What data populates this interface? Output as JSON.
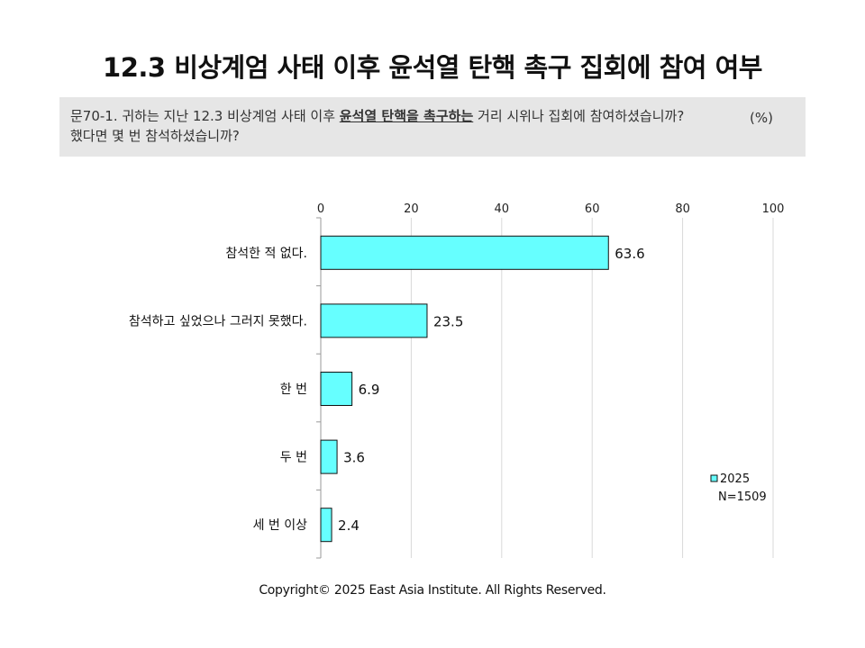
{
  "title": "12.3 비상계엄 사태 이후 윤석열 탄핵 촉구 집회에 참여 여부",
  "question": {
    "prefix": "문70-1. 귀하는 지난 12.3 비상계엄 사태 이후 ",
    "emphasis": "윤석열 탄핵을 촉구하는",
    "suffix": " 거리 시위나 집회에 참여하셨습니까?",
    "line2": "했다면 몇 번 참석하셨습니까?"
  },
  "unit": "(%)",
  "footer": "Copyright© 2025 East Asia Institute. All Rights Reserved.",
  "chart_data": {
    "type": "bar",
    "orientation": "horizontal",
    "categories": [
      "참석한 적 없다.",
      "참석하고 싶었으나 그러지 못했다.",
      "한 번",
      "두 번",
      "세 번 이상"
    ],
    "series": [
      {
        "name": "2025",
        "values": [
          63.6,
          23.5,
          6.9,
          3.6,
          2.4
        ]
      }
    ],
    "value_labels": [
      "63.6",
      "23.5",
      "6.9",
      "3.6",
      "2.4"
    ],
    "xlim": [
      0,
      100
    ],
    "x_ticks": [
      0,
      20,
      40,
      60,
      80,
      100
    ],
    "x_axis_position": "top",
    "grid": true,
    "legend": {
      "position": "bottom-right",
      "labels": [
        "2025",
        "N=1509"
      ]
    },
    "bar_color": "#66ffff",
    "bar_stroke": "#111111"
  }
}
